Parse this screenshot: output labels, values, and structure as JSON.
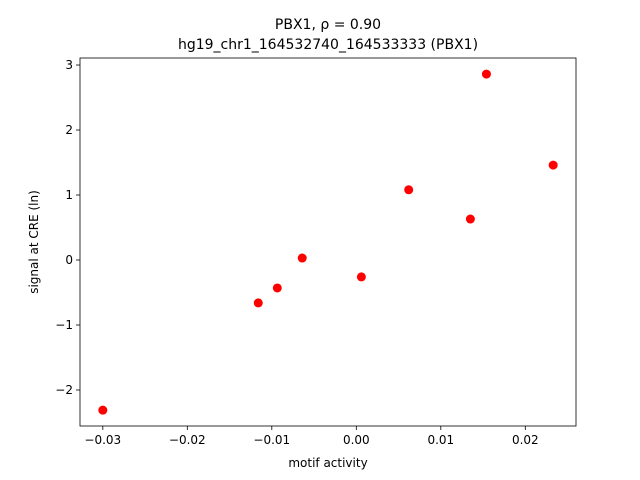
{
  "chart_data": {
    "type": "scatter",
    "title": "PBX1, ρ = 0.90",
    "subtitle": "hg19_chr1_164532740_164533333 (PBX1)",
    "x_label": "motif activity",
    "y_label": "signal at CRE (ln)",
    "color": "#ff0000",
    "x": [
      -0.03,
      -0.0116,
      -0.00935,
      -0.0064,
      0.0006,
      0.0062,
      0.0135,
      0.0154,
      0.0233
    ],
    "values": [
      -2.31,
      -0.66,
      -0.43,
      0.03,
      -0.26,
      1.08,
      0.63,
      2.86,
      1.46
    ],
    "xlim": [
      -0.0327,
      0.026
    ],
    "ylim": [
      -2.554,
      3.108
    ],
    "xticks": [
      {
        "value": -0.03,
        "label": "−0.03"
      },
      {
        "value": -0.02,
        "label": "−0.02"
      },
      {
        "value": -0.01,
        "label": "−0.01"
      },
      {
        "value": 0,
        "label": "0.00"
      },
      {
        "value": 0.01,
        "label": "0.01"
      },
      {
        "value": 0.02,
        "label": "0.02"
      }
    ],
    "yticks": [
      {
        "value": -2,
        "label": "−2"
      },
      {
        "value": -1,
        "label": "−1"
      },
      0,
      1,
      2,
      3
    ],
    "grid": false
  }
}
